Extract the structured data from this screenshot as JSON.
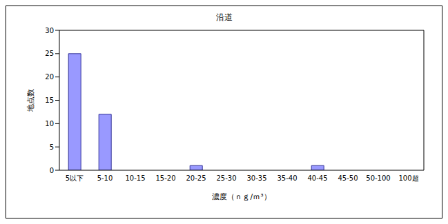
{
  "chart_data": {
    "type": "bar",
    "title": "沿道",
    "x_label": "濃度（ｎｇ/ｍ³）",
    "y_label": "地点数",
    "categories": [
      "5以下",
      "5-10",
      "10-15",
      "15-20",
      "20-25",
      "25-30",
      "30-35",
      "35-40",
      "40-45",
      "45-50",
      "50-100",
      "100超"
    ],
    "values": [
      25,
      12,
      0,
      0,
      1,
      0,
      0,
      0,
      1,
      0,
      0,
      0
    ],
    "color": "#9999ff",
    "ylim": [
      0,
      30
    ],
    "yticks": [
      0,
      5,
      10,
      15,
      20,
      25,
      30
    ],
    "grid": false
  }
}
